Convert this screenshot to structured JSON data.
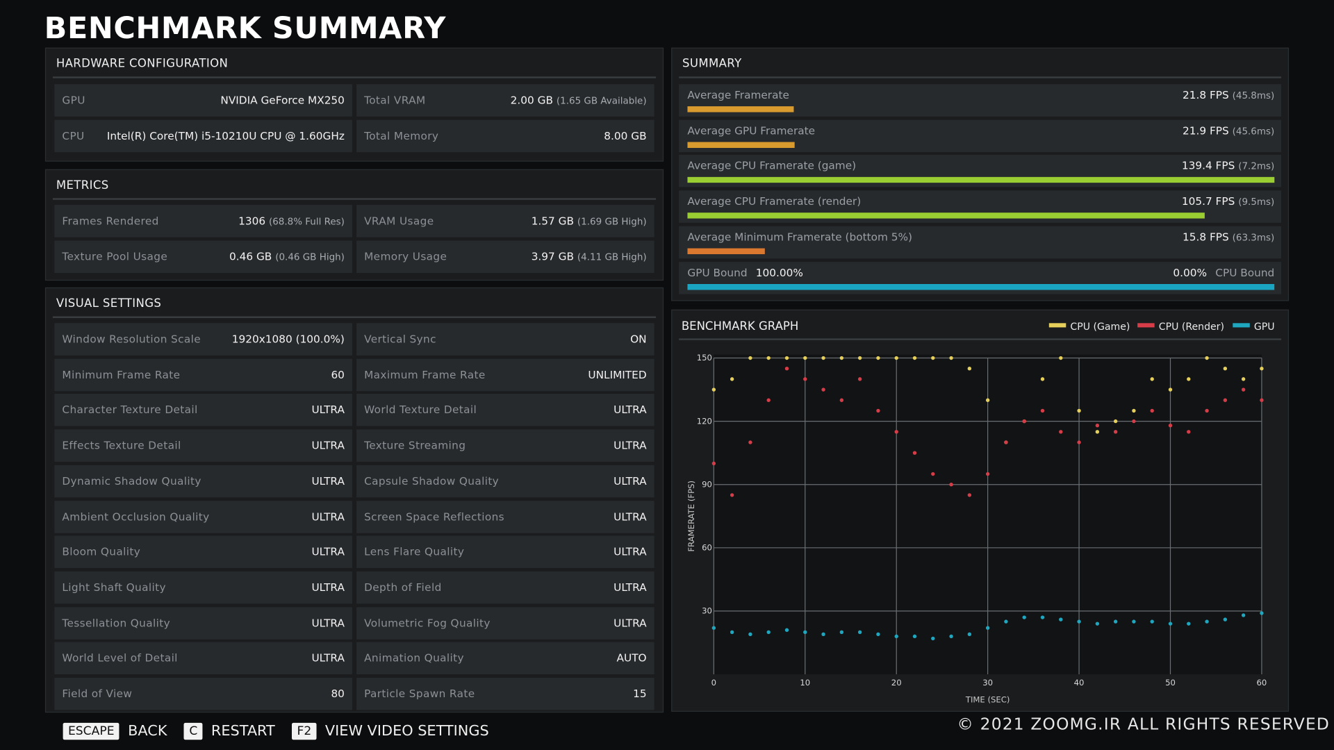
{
  "title": "BENCHMARK SUMMARY",
  "hardware": {
    "title": "HARDWARE CONFIGURATION",
    "rows": [
      [
        {
          "label": "GPU",
          "value": "NVIDIA GeForce MX250"
        },
        {
          "label": "Total VRAM",
          "value": "2.00 GB",
          "note": "(1.65 GB Available)"
        }
      ],
      [
        {
          "label": "CPU",
          "value": "Intel(R) Core(TM) i5-10210U CPU @ 1.60GHz"
        },
        {
          "label": "Total Memory",
          "value": "8.00 GB"
        }
      ]
    ]
  },
  "metrics": {
    "title": "METRICS",
    "rows": [
      [
        {
          "label": "Frames Rendered",
          "value": "1306",
          "note": "(68.8% Full Res)"
        },
        {
          "label": "VRAM Usage",
          "value": "1.57 GB",
          "note": "(1.69 GB High)"
        }
      ],
      [
        {
          "label": "Texture Pool Usage",
          "value": "0.46 GB",
          "note": "(0.46 GB High)"
        },
        {
          "label": "Memory Usage",
          "value": "3.97 GB",
          "note": "(4.11 GB High)"
        }
      ]
    ]
  },
  "visual": {
    "title": "VISUAL SETTINGS",
    "rows": [
      [
        {
          "label": "Window Resolution Scale",
          "value": "1920x1080 (100.0%)"
        },
        {
          "label": "Vertical Sync",
          "value": "ON"
        }
      ],
      [
        {
          "label": "Minimum Frame Rate",
          "value": "60"
        },
        {
          "label": "Maximum Frame Rate",
          "value": "UNLIMITED"
        }
      ],
      [
        {
          "label": "Character Texture Detail",
          "value": "ULTRA"
        },
        {
          "label": "World Texture Detail",
          "value": "ULTRA"
        }
      ],
      [
        {
          "label": "Effects Texture Detail",
          "value": "ULTRA"
        },
        {
          "label": "Texture Streaming",
          "value": "ULTRA"
        }
      ],
      [
        {
          "label": "Dynamic Shadow Quality",
          "value": "ULTRA"
        },
        {
          "label": "Capsule Shadow Quality",
          "value": "ULTRA"
        }
      ],
      [
        {
          "label": "Ambient Occlusion Quality",
          "value": "ULTRA"
        },
        {
          "label": "Screen Space Reflections",
          "value": "ULTRA"
        }
      ],
      [
        {
          "label": "Bloom Quality",
          "value": "ULTRA"
        },
        {
          "label": "Lens Flare Quality",
          "value": "ULTRA"
        }
      ],
      [
        {
          "label": "Light Shaft Quality",
          "value": "ULTRA"
        },
        {
          "label": "Depth of Field",
          "value": "ULTRA"
        }
      ],
      [
        {
          "label": "Tessellation Quality",
          "value": "ULTRA"
        },
        {
          "label": "Volumetric Fog Quality",
          "value": "ULTRA"
        }
      ],
      [
        {
          "label": "World Level of Detail",
          "value": "ULTRA"
        },
        {
          "label": "Animation Quality",
          "value": "AUTO"
        }
      ],
      [
        {
          "label": "Field of View",
          "value": "80"
        },
        {
          "label": "Particle Spawn Rate",
          "value": "15"
        }
      ]
    ]
  },
  "summary": {
    "title": "SUMMARY",
    "scale_max": 120,
    "rows": [
      {
        "label": "Average Framerate",
        "value": 21.8,
        "value_label": "21.8 FPS",
        "note": "(45.8ms)",
        "color": "#d99a2e"
      },
      {
        "label": "Average GPU Framerate",
        "value": 21.9,
        "value_label": "21.9 FPS",
        "note": "(45.6ms)",
        "color": "#d99a2e"
      },
      {
        "label": "Average CPU Framerate (game)",
        "value": 139.4,
        "value_label": "139.4 FPS",
        "note": "(7.2ms)",
        "color": "#9acd32"
      },
      {
        "label": "Average CPU Framerate (render)",
        "value": 105.7,
        "value_label": "105.7 FPS",
        "note": "(9.5ms)",
        "color": "#9acd32"
      },
      {
        "label": "Average Minimum Framerate (bottom 5%)",
        "value": 15.8,
        "value_label": "15.8 FPS",
        "note": "(63.3ms)",
        "color": "#d9782e"
      }
    ],
    "bound": {
      "left_label": "GPU Bound",
      "left_value": "100.00%",
      "right_value": "0.00%",
      "right_label": "CPU Bound",
      "value": 100,
      "color": "#1aa5c2"
    }
  },
  "chart_data": {
    "type": "scatter",
    "title": "BENCHMARK GRAPH",
    "x_label": "TIME (SEC)",
    "y_label": "FRAMERATE (FPS)",
    "xlim": [
      0,
      60
    ],
    "ylim": [
      0,
      150
    ],
    "xticks": [
      0,
      10,
      20,
      30,
      40,
      50,
      60
    ],
    "yticks": [
      30,
      60,
      90,
      120,
      150
    ],
    "grid": true,
    "x": [
      0,
      2,
      4,
      6,
      8,
      10,
      12,
      14,
      16,
      18,
      20,
      22,
      24,
      26,
      28,
      30,
      32,
      34,
      36,
      38,
      40,
      42,
      44,
      46,
      48,
      50,
      52,
      54,
      56,
      58,
      60
    ],
    "series": [
      {
        "name": "CPU (Game)",
        "color": "#e6cf5a",
        "values": [
          135,
          140,
          150,
          150,
          150,
          150,
          150,
          150,
          150,
          150,
          150,
          150,
          150,
          150,
          145,
          130,
          110,
          120,
          140,
          150,
          125,
          115,
          120,
          125,
          140,
          135,
          140,
          150,
          145,
          140,
          145
        ]
      },
      {
        "name": "CPU (Render)",
        "color": "#d63d48",
        "values": [
          100,
          85,
          110,
          130,
          145,
          140,
          135,
          130,
          140,
          125,
          115,
          105,
          95,
          90,
          85,
          95,
          110,
          120,
          125,
          115,
          110,
          118,
          115,
          120,
          125,
          118,
          115,
          125,
          130,
          135,
          130
        ]
      },
      {
        "name": "GPU",
        "color": "#1fa7c0",
        "values": [
          22,
          20,
          19,
          20,
          21,
          20,
          19,
          20,
          20,
          19,
          18,
          18,
          17,
          18,
          19,
          22,
          25,
          27,
          27,
          26,
          25,
          24,
          25,
          25,
          25,
          24,
          24,
          25,
          26,
          28,
          29
        ]
      }
    ]
  },
  "footer": {
    "actions": [
      {
        "key": "ESCAPE",
        "label": "BACK"
      },
      {
        "key": "C",
        "label": "RESTART"
      },
      {
        "key": "F2",
        "label": "VIEW VIDEO SETTINGS"
      }
    ],
    "copyright": "© 2021 ZOOMG.IR ALL RIGHTS RESERVED"
  }
}
